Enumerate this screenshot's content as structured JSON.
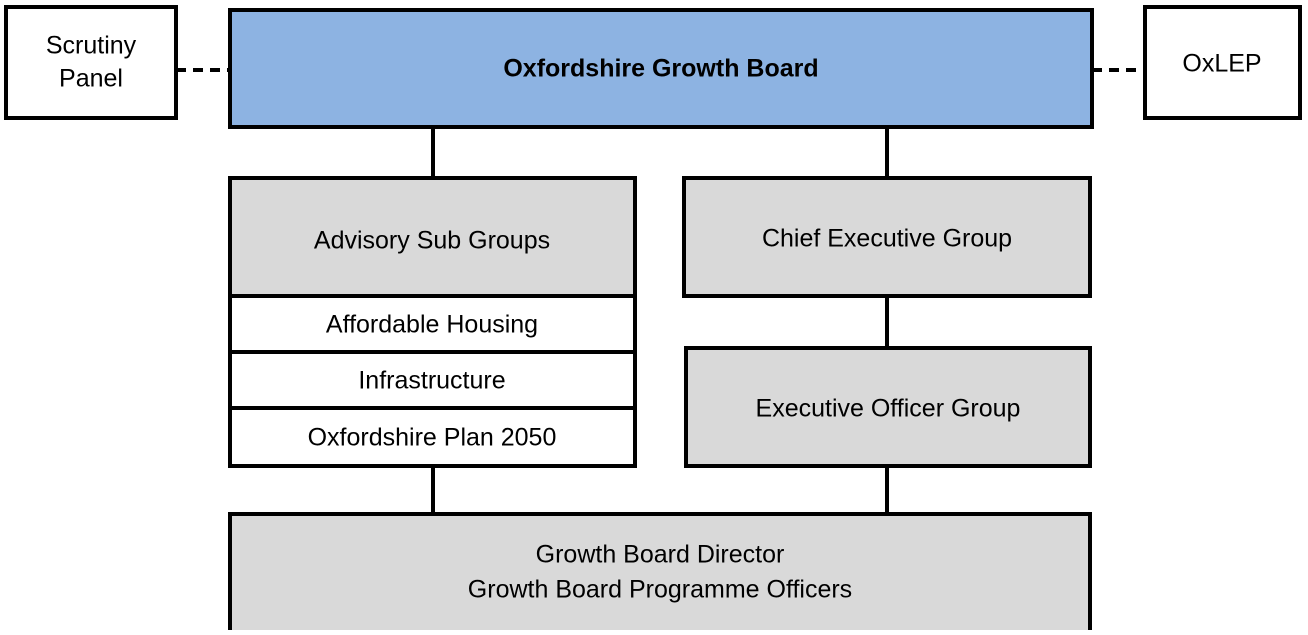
{
  "nodes": [
    {
      "lines": [
        "Scrutiny",
        "Panel"
      ]
    },
    {
      "lines": [
        "Oxfordshire Growth Board"
      ]
    },
    {
      "lines": [
        "OxLEP"
      ]
    },
    {
      "lines": [
        "Advisory Sub Groups"
      ]
    },
    {
      "lines": [
        "Affordable Housing"
      ]
    },
    {
      "lines": [
        "Infrastructure"
      ]
    },
    {
      "lines": [
        "Oxfordshire Plan 2050"
      ]
    },
    {
      "lines": [
        "Chief Executive Group"
      ]
    },
    {
      "lines": [
        "Executive Officer Group"
      ]
    },
    {
      "lines": [
        "Growth Board Director",
        "Growth Board Programme Officers"
      ]
    }
  ]
}
